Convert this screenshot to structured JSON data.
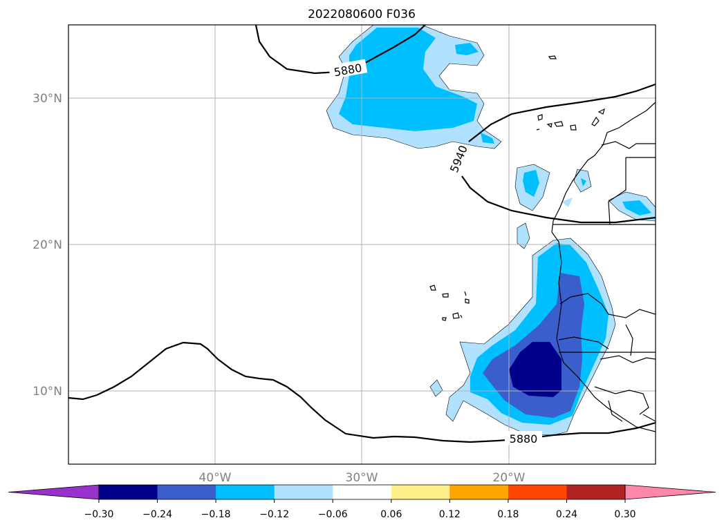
{
  "title": "2022080600 F036",
  "map": {
    "lon_range": [
      -50,
      -10
    ],
    "lat_range": [
      5,
      35
    ],
    "grid": true,
    "lon_ticks": [
      {
        "value": -40,
        "label": "40°W"
      },
      {
        "value": -30,
        "label": "30°W"
      },
      {
        "value": -20,
        "label": "20°W"
      }
    ],
    "lat_ticks": [
      {
        "value": 30,
        "label": "30°N"
      },
      {
        "value": 20,
        "label": "20°N"
      },
      {
        "value": 10,
        "label": "10°N"
      }
    ],
    "contour_labels": [
      {
        "text": "5880",
        "lon": -29,
        "lat": 32.0
      },
      {
        "text": "5940",
        "lon": -23.5,
        "lat": 26.0
      },
      {
        "text": "5880",
        "lon": -19.0,
        "lat": 6.7
      }
    ]
  },
  "colorbar": {
    "ticks": [
      "−0.30",
      "−0.24",
      "−0.18",
      "−0.12",
      "−0.06",
      "0.06",
      "0.12",
      "0.18",
      "0.24",
      "0.30"
    ],
    "under_color": "#9932cc",
    "over_color": "#ff88aa",
    "colors": [
      "#00008b",
      "#3a5fcd",
      "#00bfff",
      "#b0e2ff",
      "#ffffff",
      "#fff08c",
      "#ffa500",
      "#ff4500",
      "#b22222"
    ]
  }
}
